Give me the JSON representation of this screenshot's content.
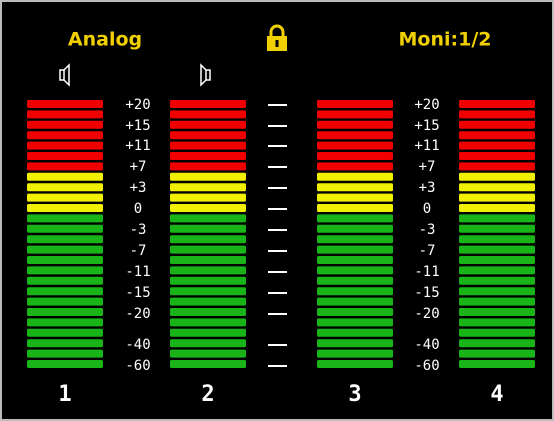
{
  "header": {
    "left": "Analog",
    "right": "Moni:1/2"
  },
  "scale": [
    "+20",
    "+15",
    "+11",
    "+7",
    "+3",
    "0",
    "-3",
    "-7",
    "-11",
    "-15",
    "-20",
    "-40",
    "-60"
  ],
  "channels": [
    "1",
    "2",
    "3",
    "4"
  ]
}
